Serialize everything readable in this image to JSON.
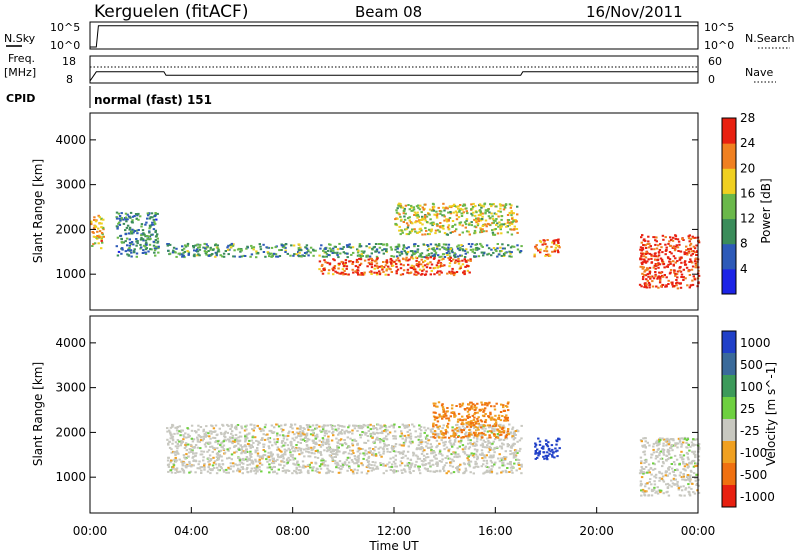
{
  "header": {
    "station": "Kerguelen (fitACF)",
    "beam": "Beam 08",
    "date": "16/Nov/2011"
  },
  "noise_panel": {
    "left_label": "N.Sky",
    "left_ticks": [
      "10^5",
      "10^0"
    ],
    "right_ticks": [
      "10^5",
      "10^0"
    ],
    "right_label": "N.Search"
  },
  "freq_panel": {
    "left_label_1": "Freq.",
    "left_label_2": "[MHz]",
    "left_ticks": [
      "18",
      "8"
    ],
    "right_ticks": [
      "60",
      "0"
    ],
    "right_label": "Nave"
  },
  "cpid": {
    "label": "CPID",
    "value": "normal (fast) 151"
  },
  "chart_data": [
    {
      "type": "line",
      "panel": "noise",
      "series": [
        {
          "name": "N.Sky",
          "x": [
            "00:00",
            "00:15",
            "00:20",
            "24:00"
          ],
          "y_log10": [
            0.0,
            0.0,
            4.6,
            4.6
          ]
        },
        {
          "name": "N.Search",
          "x": [
            "00:00",
            "24:00"
          ],
          "y_log10": [
            0.0,
            0.0
          ]
        }
      ],
      "ylim_log10": [
        0,
        5
      ],
      "xlim": [
        "00:00",
        "24:00"
      ]
    },
    {
      "type": "line",
      "panel": "frequency",
      "series": [
        {
          "name": "Freq.",
          "x": [
            "00:00",
            "00:15",
            "02:55",
            "03:00",
            "17:00",
            "17:05",
            "24:00"
          ],
          "y": [
            8,
            12,
            12,
            10.5,
            10.5,
            12,
            12
          ]
        },
        {
          "name": "Nave",
          "x": [
            "00:00",
            "24:00"
          ],
          "y": [
            32,
            32
          ]
        }
      ],
      "ylim_left": [
        8,
        18
      ],
      "ylim_right": [
        0,
        60
      ],
      "xlim": [
        "00:00",
        "24:00"
      ]
    },
    {
      "type": "heatmap",
      "panel": "power",
      "ylabel": "Slant Range [km]",
      "yticks": [
        "1000",
        "2000",
        "3000",
        "4000"
      ],
      "ylim": [
        200,
        4600
      ],
      "colorbar_label": "Power [dB]",
      "colorbar_ticks": [
        "4",
        "8",
        "12",
        "16",
        "20",
        "24",
        "28"
      ],
      "colorbar_range": [
        0,
        30
      ],
      "colorbar_colors": [
        "#1c24e6",
        "#2d5ab8",
        "#3a8c5a",
        "#6ab84a",
        "#f0d020",
        "#f08020",
        "#e82010"
      ],
      "features": [
        {
          "t_start": "00:00",
          "t_end": "00:30",
          "r_start": 1600,
          "r_end": 2400,
          "level": 20
        },
        {
          "t_start": "01:00",
          "t_end": "02:40",
          "r_start": 1400,
          "r_end": 2400,
          "level": 10
        },
        {
          "t_start": "03:00",
          "t_end": "17:00",
          "r_start": 1400,
          "r_end": 1700,
          "level": 12
        },
        {
          "t_start": "09:00",
          "t_end": "15:00",
          "r_start": 1000,
          "r_end": 1400,
          "level": 26
        },
        {
          "t_start": "12:00",
          "t_end": "16:50",
          "r_start": 1900,
          "r_end": 2600,
          "level": 18
        },
        {
          "t_start": "17:30",
          "t_end": "18:30",
          "r_start": 1400,
          "r_end": 1800,
          "level": 24
        },
        {
          "t_start": "21:40",
          "t_end": "24:00",
          "r_start": 700,
          "r_end": 1900,
          "level": 28
        }
      ]
    },
    {
      "type": "heatmap",
      "panel": "velocity",
      "ylabel": "Slant Range [km]",
      "yticks": [
        "1000",
        "2000",
        "3000",
        "4000"
      ],
      "ylim": [
        200,
        4600
      ],
      "xticks": [
        "00:00",
        "04:00",
        "08:00",
        "12:00",
        "16:00",
        "20:00",
        "00:00"
      ],
      "xlabel": "Time UT",
      "colorbar_label": "Velocity [m s^-1]",
      "colorbar_ticks": [
        "1000",
        "500",
        "100",
        "25",
        "-25",
        "-100",
        "-500",
        "-1000"
      ],
      "colorbar_colors": [
        "#2040c8",
        "#3a6a9a",
        "#3c9a5a",
        "#6ed040",
        "#c8c8c0",
        "#f0a020",
        "#f07010",
        "#e82010"
      ],
      "features": [
        {
          "t_start": "03:00",
          "t_end": "17:00",
          "r_start": 1100,
          "r_end": 2200,
          "level": 0
        },
        {
          "t_start": "17:30",
          "t_end": "18:30",
          "r_start": 1400,
          "r_end": 1900,
          "level": 800
        },
        {
          "t_start": "13:30",
          "t_end": "16:30",
          "r_start": 1900,
          "r_end": 2700,
          "level": -100
        },
        {
          "t_start": "21:40",
          "t_end": "24:00",
          "r_start": 600,
          "r_end": 1900,
          "level": 0
        }
      ]
    }
  ]
}
